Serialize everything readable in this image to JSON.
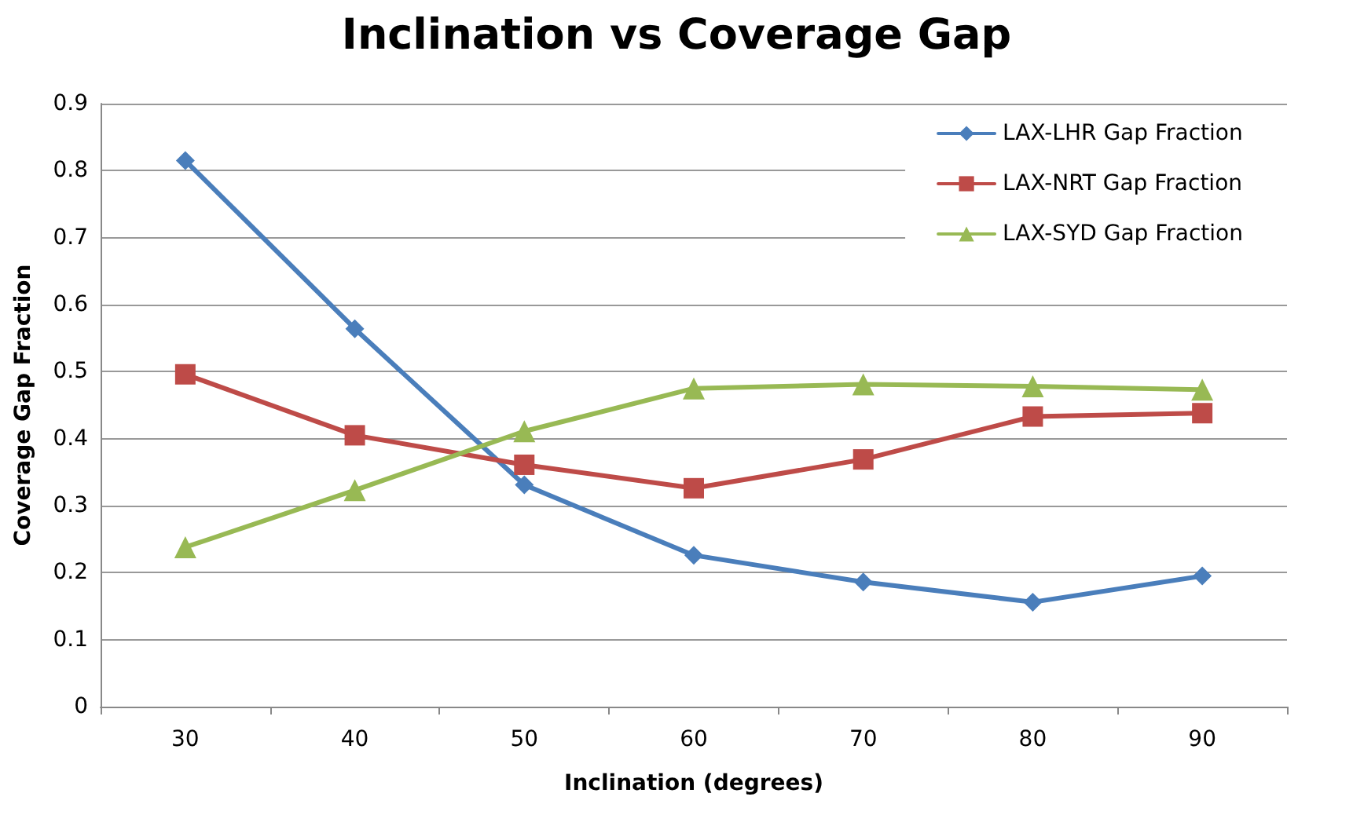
{
  "chart_data": {
    "type": "line",
    "title": "Inclination vs Coverage Gap",
    "xlabel": "Inclination (degrees)",
    "ylabel": "Coverage Gap Fraction",
    "categories": [
      "30",
      "40",
      "50",
      "60",
      "70",
      "80",
      "90"
    ],
    "series": [
      {
        "name": "LAX-LHR Gap Fraction",
        "color": "#4a7ebb",
        "marker": "diamond",
        "values": [
          0.815,
          0.564,
          0.331,
          0.226,
          0.186,
          0.156,
          0.195
        ]
      },
      {
        "name": "LAX-NRT Gap Fraction",
        "color": "#be4b48",
        "marker": "square",
        "values": [
          0.496,
          0.405,
          0.361,
          0.326,
          0.369,
          0.433,
          0.438
        ]
      },
      {
        "name": "LAX-SYD Gap Fraction",
        "color": "#98b954",
        "marker": "triangle",
        "values": [
          0.238,
          0.323,
          0.411,
          0.475,
          0.481,
          0.478,
          0.473
        ]
      }
    ],
    "ylim": [
      0,
      0.9
    ],
    "yticks": [
      0,
      0.1,
      0.2,
      0.3,
      0.4,
      0.5,
      0.6,
      0.7,
      0.8,
      0.9
    ],
    "grid": "y",
    "legend": "top right",
    "line_style": "solid"
  }
}
